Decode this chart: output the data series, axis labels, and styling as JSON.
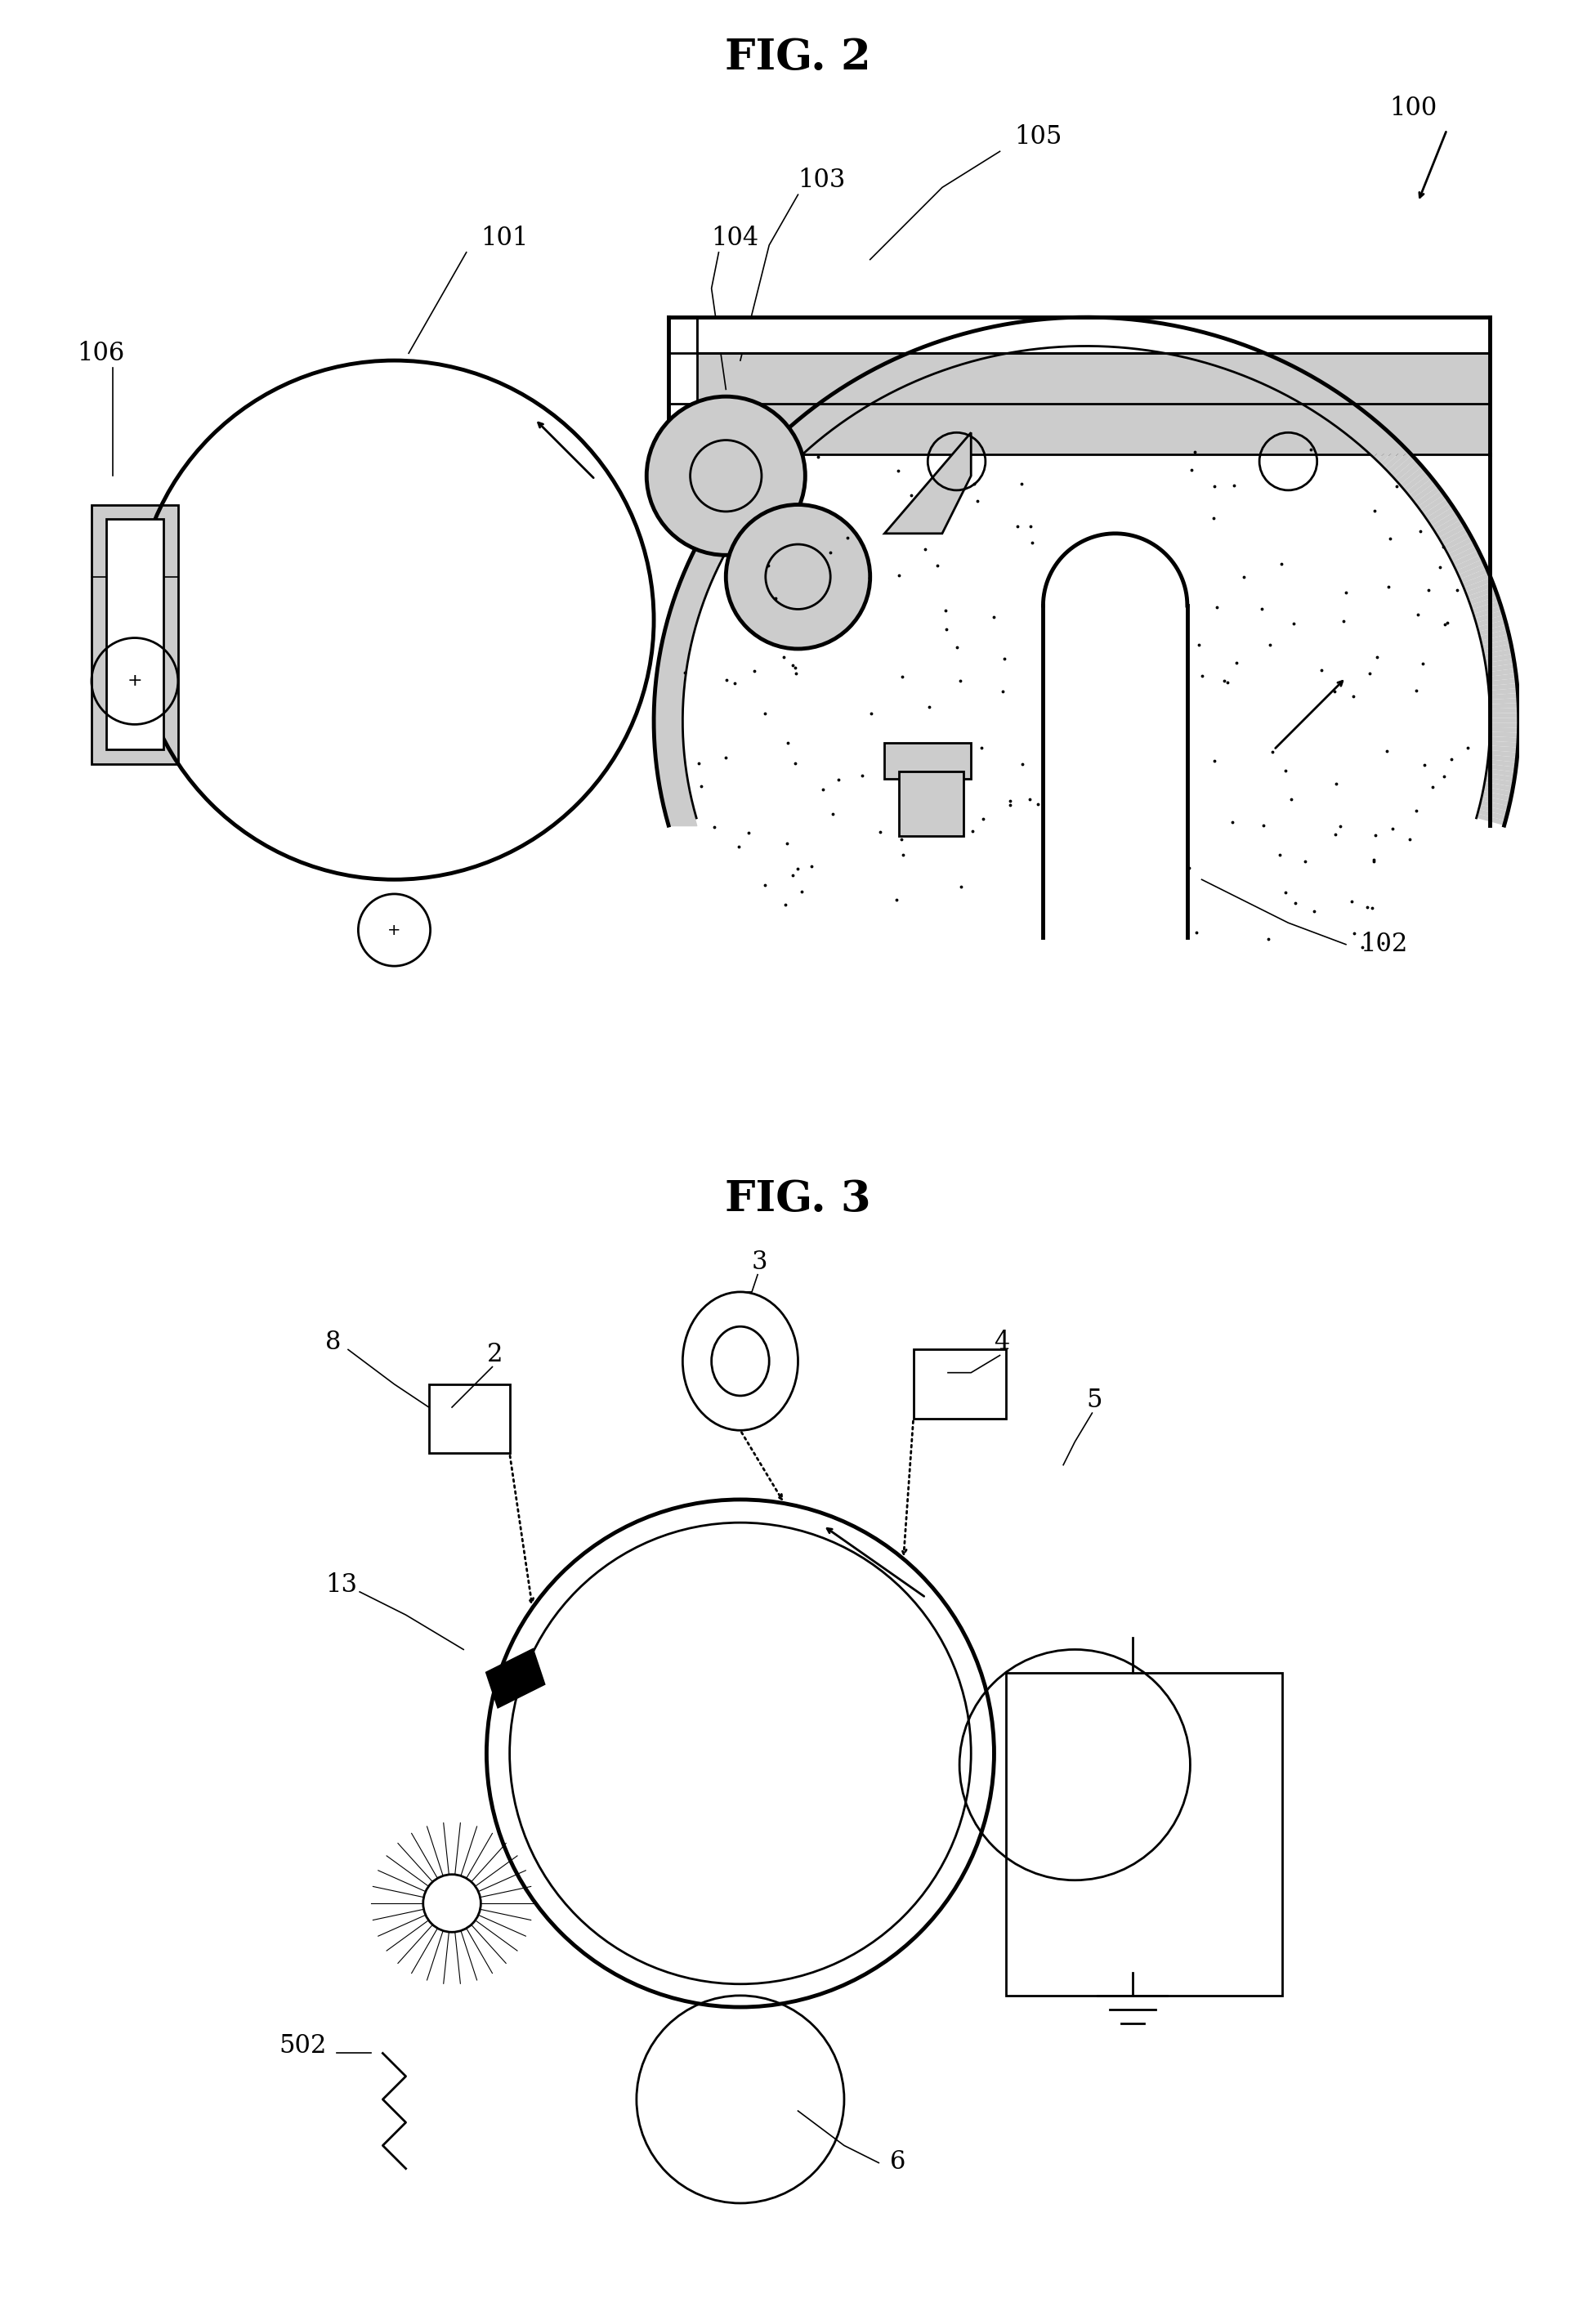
{
  "fig2_title": "FIG. 2",
  "fig3_title": "FIG. 3",
  "bg_color": "#ffffff",
  "lw": 2.0,
  "lw_thick": 3.5,
  "font_size_title": 38,
  "font_size_label": 22,
  "gray": "#aaaaaa",
  "gray_light": "#cccccc",
  "gray_mid": "#888888"
}
